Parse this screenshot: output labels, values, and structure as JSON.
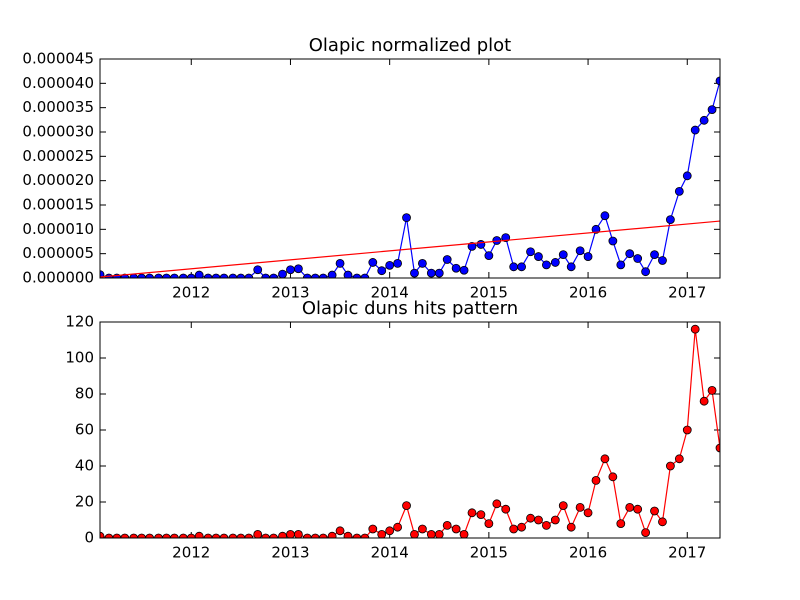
{
  "chart_data": [
    {
      "type": "line",
      "title": "Olapic normalized plot",
      "x": [
        2011.08,
        2011.17,
        2011.25,
        2011.33,
        2011.42,
        2011.5,
        2011.58,
        2011.67,
        2011.75,
        2011.83,
        2011.92,
        2012.0,
        2012.08,
        2012.17,
        2012.25,
        2012.33,
        2012.42,
        2012.5,
        2012.58,
        2012.67,
        2012.75,
        2012.83,
        2012.92,
        2013.0,
        2013.08,
        2013.17,
        2013.25,
        2013.33,
        2013.42,
        2013.5,
        2013.58,
        2013.67,
        2013.75,
        2013.83,
        2013.92,
        2014.0,
        2014.08,
        2014.17,
        2014.25,
        2014.33,
        2014.42,
        2014.5,
        2014.58,
        2014.67,
        2014.75,
        2014.83,
        2014.92,
        2015.0,
        2015.08,
        2015.17,
        2015.25,
        2015.33,
        2015.42,
        2015.5,
        2015.58,
        2015.67,
        2015.75,
        2015.83,
        2015.92,
        2016.0,
        2016.08,
        2016.17,
        2016.25,
        2016.33,
        2016.42,
        2016.5,
        2016.58,
        2016.67,
        2016.75,
        2016.83,
        2016.92,
        2017.0,
        2017.08,
        2017.17,
        2017.25,
        2017.33
      ],
      "series": [
        {
          "color": "#0000ff",
          "marker": true,
          "values": [
            7e-07,
            0,
            0,
            0,
            0,
            0,
            0,
            0,
            0,
            0,
            0,
            0,
            6e-07,
            0,
            0,
            0,
            0,
            0,
            0,
            1.7e-06,
            0,
            0,
            8e-07,
            1.7e-06,
            1.9e-06,
            0,
            0,
            0,
            6e-07,
            3e-06,
            6e-07,
            0,
            0,
            3.2e-06,
            1.5e-06,
            2.6e-06,
            3e-06,
            1.24e-05,
            1e-06,
            3e-06,
            1e-06,
            1e-06,
            3.8e-06,
            2e-06,
            1.6e-06,
            6.5e-06,
            6.9e-06,
            4.6e-06,
            7.7e-06,
            8.3e-06,
            2.3e-06,
            2.3e-06,
            5.4e-06,
            4.4e-06,
            2.7e-06,
            3.2e-06,
            4.8e-06,
            2.3e-06,
            5.6e-06,
            4.4e-06,
            1e-05,
            1.28e-05,
            7.6e-06,
            2.7e-06,
            5e-06,
            4e-06,
            1.3e-06,
            4.8e-06,
            3.6e-06,
            1.2e-05,
            1.78e-05,
            2.1e-05,
            3.04e-05,
            3.24e-05,
            3.46e-05,
            4.05e-05
          ]
        },
        {
          "color": "#ff0000",
          "marker": false,
          "x": [
            2011.08,
            2017.33
          ],
          "values": [
            2e-07,
            1.17e-05
          ]
        }
      ],
      "xlim": [
        2011.08,
        2017.33
      ],
      "xticks": [
        2012,
        2013,
        2014,
        2015,
        2016,
        2017
      ],
      "ylim": [
        0,
        4.5e-05
      ],
      "yticks": [
        {
          "value": 0,
          "label": "0.000000"
        },
        {
          "value": 5e-06,
          "label": "0.000005"
        },
        {
          "value": 1e-05,
          "label": "0.000010"
        },
        {
          "value": 1.5e-05,
          "label": "0.000015"
        },
        {
          "value": 2e-05,
          "label": "0.000020"
        },
        {
          "value": 2.5e-05,
          "label": "0.000025"
        },
        {
          "value": 3e-05,
          "label": "0.000030"
        },
        {
          "value": 3.5e-05,
          "label": "0.000035"
        },
        {
          "value": 4e-05,
          "label": "0.000040"
        },
        {
          "value": 4.5e-05,
          "label": "0.000045"
        }
      ]
    },
    {
      "type": "line",
      "title": "Olapic duns hits pattern",
      "x": [
        2011.08,
        2011.17,
        2011.25,
        2011.33,
        2011.42,
        2011.5,
        2011.58,
        2011.67,
        2011.75,
        2011.83,
        2011.92,
        2012.0,
        2012.08,
        2012.17,
        2012.25,
        2012.33,
        2012.42,
        2012.5,
        2012.58,
        2012.67,
        2012.75,
        2012.83,
        2012.92,
        2013.0,
        2013.08,
        2013.17,
        2013.25,
        2013.33,
        2013.42,
        2013.5,
        2013.58,
        2013.67,
        2013.75,
        2013.83,
        2013.92,
        2014.0,
        2014.08,
        2014.17,
        2014.25,
        2014.33,
        2014.42,
        2014.5,
        2014.58,
        2014.67,
        2014.75,
        2014.83,
        2014.92,
        2015.0,
        2015.08,
        2015.17,
        2015.25,
        2015.33,
        2015.42,
        2015.5,
        2015.58,
        2015.67,
        2015.75,
        2015.83,
        2015.92,
        2016.0,
        2016.08,
        2016.17,
        2016.25,
        2016.33,
        2016.42,
        2016.5,
        2016.58,
        2016.67,
        2016.75,
        2016.83,
        2016.92,
        2017.0,
        2017.08,
        2017.17,
        2017.25,
        2017.33
      ],
      "series": [
        {
          "color": "#ff0000",
          "marker": true,
          "values": [
            1,
            0,
            0,
            0,
            0,
            0,
            0,
            0,
            0,
            0,
            0,
            0,
            1,
            0,
            0,
            0,
            0,
            0,
            0,
            2,
            0,
            0,
            1,
            2,
            2,
            0,
            0,
            0,
            1,
            4,
            1,
            0,
            0,
            5,
            2,
            4,
            6,
            18,
            2,
            5,
            2,
            2,
            7,
            5,
            2,
            14,
            13,
            8,
            19,
            16,
            5,
            6,
            11,
            10,
            7,
            10,
            18,
            6,
            17,
            14,
            32,
            44,
            34,
            8,
            17,
            16,
            3,
            15,
            9,
            40,
            44,
            60,
            116,
            76,
            82,
            50
          ]
        }
      ],
      "xlim": [
        2011.08,
        2017.33
      ],
      "xticks": [
        2012,
        2013,
        2014,
        2015,
        2016,
        2017
      ],
      "ylim": [
        0,
        120
      ],
      "yticks": [
        0,
        20,
        40,
        60,
        80,
        100,
        120
      ]
    }
  ]
}
